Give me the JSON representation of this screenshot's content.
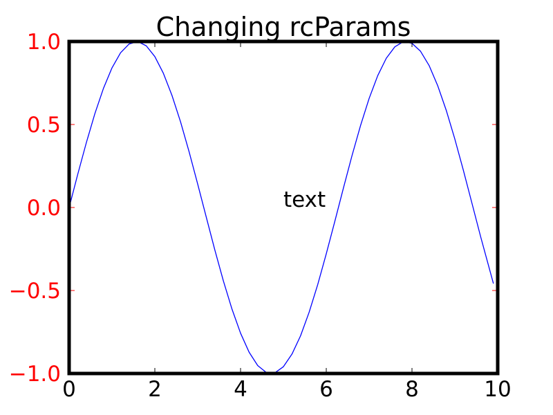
{
  "chart_data": {
    "type": "line",
    "title": "Changing rcParams",
    "xlabel": "",
    "ylabel": "",
    "xlim": [
      0,
      10
    ],
    "ylim": [
      -1.0,
      1.0
    ],
    "grid": false,
    "x_ticks": [
      {
        "value": 0,
        "label": "0"
      },
      {
        "value": 2,
        "label": "2"
      },
      {
        "value": 4,
        "label": "4"
      },
      {
        "value": 6,
        "label": "6"
      },
      {
        "value": 8,
        "label": "8"
      },
      {
        "value": 10,
        "label": "10"
      }
    ],
    "y_ticks": [
      {
        "value": -1.0,
        "label": "−1.0"
      },
      {
        "value": -0.5,
        "label": "−0.5"
      },
      {
        "value": 0.0,
        "label": "0.0"
      },
      {
        "value": 0.5,
        "label": "0.5"
      },
      {
        "value": 1.0,
        "label": "1.0"
      }
    ],
    "series": [
      {
        "color": "#0000ff",
        "x": [
          0.0,
          0.2,
          0.4,
          0.6,
          0.8,
          1.0,
          1.2,
          1.4,
          1.6,
          1.8,
          2.0,
          2.2,
          2.4,
          2.6,
          2.8,
          3.0,
          3.2,
          3.4,
          3.6,
          3.8,
          4.0,
          4.2,
          4.4,
          4.6,
          4.8,
          5.0,
          5.2,
          5.4,
          5.6,
          5.8,
          6.0,
          6.2,
          6.4,
          6.6,
          6.8,
          7.0,
          7.2,
          7.4,
          7.6,
          7.8,
          8.0,
          8.2,
          8.4,
          8.6,
          8.8,
          9.0,
          9.2,
          9.4,
          9.6,
          9.9
        ],
        "y": [
          0.0,
          0.199,
          0.389,
          0.565,
          0.717,
          0.841,
          0.932,
          0.985,
          1.0,
          0.974,
          0.909,
          0.808,
          0.675,
          0.516,
          0.335,
          0.141,
          -0.058,
          -0.256,
          -0.443,
          -0.612,
          -0.757,
          -0.872,
          -0.952,
          -0.994,
          -0.996,
          -0.959,
          -0.883,
          -0.773,
          -0.631,
          -0.465,
          -0.279,
          -0.083,
          0.117,
          0.312,
          0.494,
          0.657,
          0.794,
          0.899,
          0.968,
          0.999,
          0.989,
          0.941,
          0.855,
          0.734,
          0.585,
          0.412,
          0.223,
          0.025,
          -0.174,
          -0.458
        ]
      }
    ],
    "annotations": [
      {
        "text": "text",
        "x": 5.0,
        "y": 0.0
      }
    ],
    "colors": {
      "line": "#0000ff",
      "y_tick_labels": "#ff0000",
      "x_tick_labels": "#000000",
      "y_ticks": "#ff0000",
      "x_ticks": "#000000",
      "frame": "#000000"
    }
  }
}
